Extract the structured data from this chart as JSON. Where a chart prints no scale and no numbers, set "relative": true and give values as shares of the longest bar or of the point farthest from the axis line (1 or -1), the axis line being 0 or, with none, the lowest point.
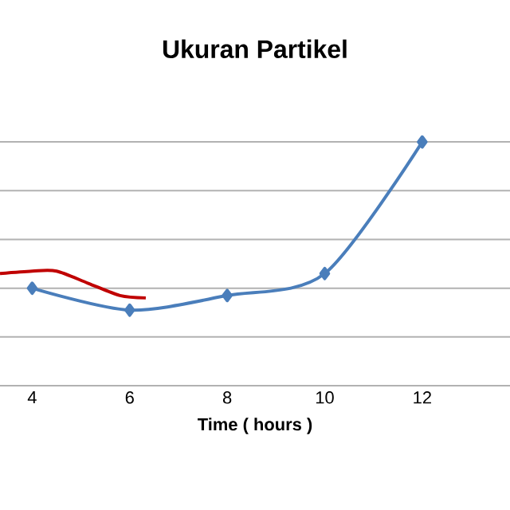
{
  "chart_data": {
    "type": "line",
    "title": "Ukuran Partikel",
    "xlabel": "Time ( hours )",
    "relative": true,
    "grid": "y",
    "xlim": [
      3.34,
      13.8
    ],
    "xticks": [
      4,
      6,
      8,
      10,
      12
    ],
    "series": [
      {
        "color": "#4a7ebb",
        "marker": "diamond",
        "x": [
          4,
          6,
          8,
          10,
          12
        ],
        "values": [
          0.4,
          0.31,
          0.37,
          0.46,
          1
        ]
      },
      {
        "color": "#c00000",
        "marker": "none",
        "x": [
          3.34,
          4,
          4.5,
          5.15,
          5.8,
          6.33
        ],
        "values": [
          0.46,
          0.47,
          0.47,
          0.42,
          0.37,
          0.36
        ]
      }
    ]
  }
}
